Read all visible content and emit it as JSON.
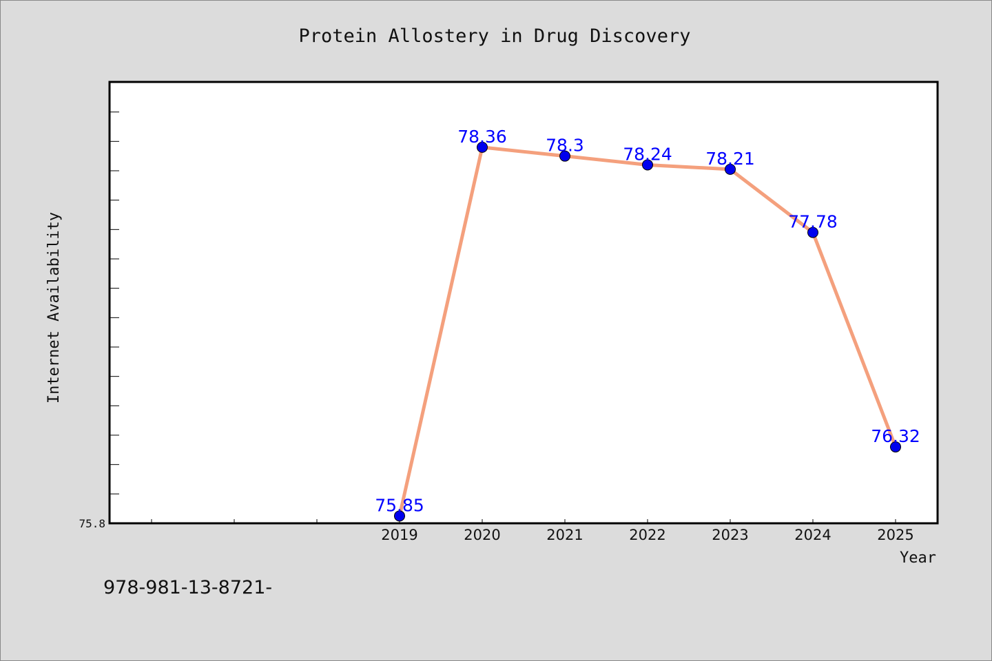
{
  "chart_data": {
    "type": "line",
    "title": "Protein Allostery in Drug Discovery",
    "xlabel": "Year",
    "ylabel": "Internet Availability",
    "x": [
      2019,
      2020,
      2021,
      2022,
      2023,
      2024,
      2025
    ],
    "x_tick_labels": [
      "2019",
      "2020",
      "2021",
      "2022",
      "2023",
      "2024",
      "2025"
    ],
    "y_axis_min_label": "75.8",
    "series": [
      {
        "values": [
          75.85,
          78.36,
          78.3,
          78.24,
          78.21,
          77.78,
          76.32
        ],
        "data_labels": [
          "75.85",
          "78.36",
          "78.3",
          "78.24",
          "78.21",
          "77.78",
          "76.32"
        ]
      }
    ],
    "xlim": [
      2015.5,
      2025.5
    ],
    "ylim": [
      75.8,
      78.8
    ],
    "grid": false,
    "legend": "none"
  },
  "footer_text": "978-981-13-8721-",
  "colors": {
    "line": "#f4a07d",
    "marker": "#0000ee",
    "data_label": "#0000ff",
    "plot_bg": "#ffffff",
    "page_bg": "#dcdcdc"
  }
}
